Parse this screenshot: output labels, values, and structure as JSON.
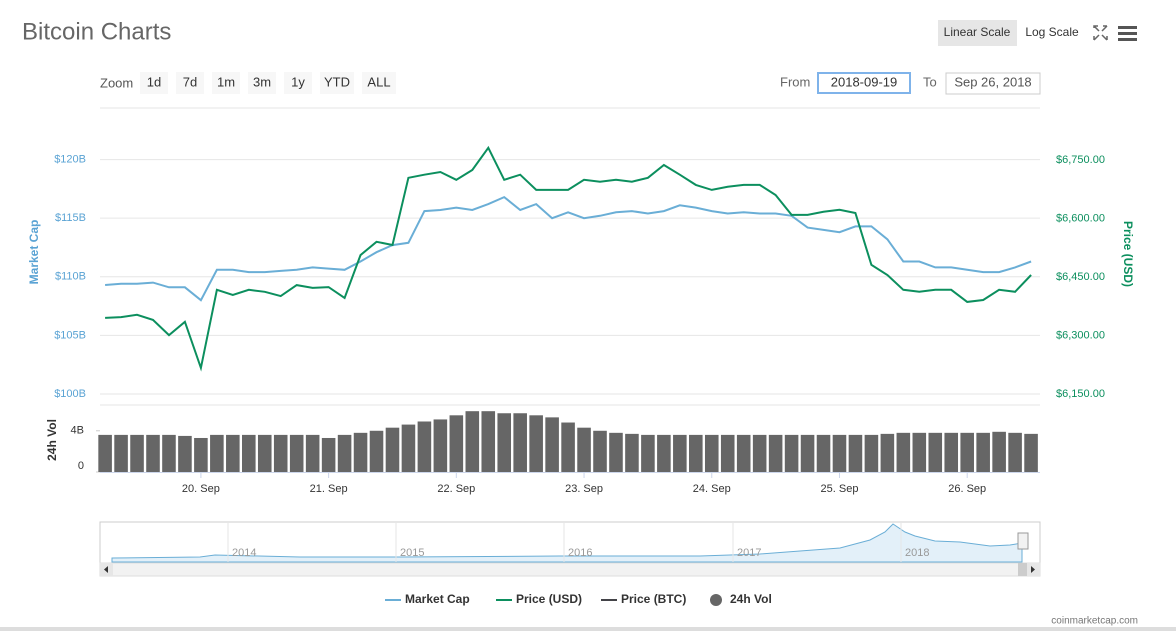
{
  "ui": {
    "title": "Bitcoin Charts",
    "linear_scale": "Linear Scale",
    "log_scale": "Log Scale",
    "zoom": "Zoom",
    "zoom_buttons": [
      "1d",
      "7d",
      "1m",
      "3m",
      "1y",
      "YTD",
      "ALL"
    ],
    "from_label": "From",
    "from_value": "2018-09-19",
    "to_label": "To",
    "to_value": "Sep 26, 2018",
    "credit": "coinmarketcap.com"
  },
  "navigator": {
    "labels": [
      "2014",
      "2015",
      "2016",
      "2017",
      "2018"
    ]
  },
  "chart_data": {
    "type": "line",
    "y_label": "Market Cap",
    "y2_label": "Price (USD)",
    "vol_label": "24h Vol",
    "x": [
      19.25,
      19.375,
      19.5,
      19.625,
      19.75,
      19.875,
      20,
      20.125,
      20.25,
      20.375,
      20.5,
      20.625,
      20.75,
      20.875,
      21,
      21.125,
      21.25,
      21.375,
      21.5,
      21.625,
      21.75,
      21.875,
      22,
      22.125,
      22.25,
      22.375,
      22.5,
      22.625,
      22.75,
      22.875,
      23,
      23.125,
      23.25,
      23.375,
      23.5,
      23.625,
      23.75,
      23.875,
      24,
      24.125,
      24.25,
      24.375,
      24.5,
      24.625,
      24.75,
      24.875,
      25,
      25.125,
      25.25,
      25.375,
      25.5,
      25.625,
      25.75,
      25.875,
      26,
      26.125,
      26.25,
      26.375,
      26.5
    ],
    "xlim": [
      19.21,
      26.57
    ],
    "xticks": [
      {
        "value": 20,
        "label": "20. Sep"
      },
      {
        "value": 21,
        "label": "21. Sep"
      },
      {
        "value": 22,
        "label": "22. Sep"
      },
      {
        "value": 23,
        "label": "23. Sep"
      },
      {
        "value": 24,
        "label": "24. Sep"
      },
      {
        "value": 25,
        "label": "25. Sep"
      },
      {
        "value": 26,
        "label": "26. Sep"
      }
    ],
    "ylim": [
      100,
      124.4
    ],
    "yticks": [
      {
        "value": 100,
        "label": "$100B"
      },
      {
        "value": 105,
        "label": "$105B"
      },
      {
        "value": 110,
        "label": "$110B"
      },
      {
        "value": 115,
        "label": "$115B"
      },
      {
        "value": 120,
        "label": "$120B"
      }
    ],
    "y2lim": [
      6150,
      6883
    ],
    "y2ticks": [
      {
        "value": 6150,
        "label": "$6,150.00"
      },
      {
        "value": 6300,
        "label": "$6,300.00"
      },
      {
        "value": 6450,
        "label": "$6,450.00"
      },
      {
        "value": 6600,
        "label": "$6,600.00"
      },
      {
        "value": 6750,
        "label": "$6,750.00"
      }
    ],
    "vol_lim": [
      0,
      6.5
    ],
    "vol_ticks": [
      0,
      {
        "value": 4,
        "label": "4B"
      }
    ],
    "grid": true,
    "series": [
      {
        "name": "Market Cap",
        "color": "#6aaed6",
        "values": [
          109.3,
          109.4,
          109.4,
          109.5,
          109.1,
          109.1,
          108.0,
          110.6,
          110.6,
          110.4,
          110.4,
          110.5,
          110.6,
          110.8,
          110.7,
          110.6,
          111.3,
          112.1,
          112.7,
          112.9,
          115.6,
          115.7,
          115.9,
          115.7,
          116.2,
          116.8,
          115.7,
          116.2,
          115.0,
          115.5,
          115.0,
          115.2,
          115.5,
          115.6,
          115.4,
          115.6,
          116.1,
          115.9,
          115.6,
          115.4,
          115.5,
          115.4,
          115.4,
          115.2,
          114.2,
          114.0,
          113.8,
          114.3,
          114.3,
          113.2,
          111.3,
          111.3,
          110.8,
          110.8,
          110.6,
          110.4,
          110.4,
          110.8,
          111.3
        ]
      },
      {
        "name": "Price (USD)",
        "color": "#0c8f5e",
        "axis": "y2",
        "values": [
          6345,
          6347,
          6353,
          6340,
          6301,
          6335,
          6217,
          6417,
          6404,
          6417,
          6412,
          6401,
          6429,
          6422,
          6424,
          6396,
          6506,
          6540,
          6532,
          6704,
          6712,
          6719,
          6699,
          6724,
          6781,
          6699,
          6712,
          6673,
          6673,
          6673,
          6699,
          6694,
          6699,
          6694,
          6704,
          6737,
          6712,
          6686,
          6673,
          6681,
          6686,
          6686,
          6660,
          6609,
          6609,
          6617,
          6622,
          6614,
          6481,
          6455,
          6417,
          6412,
          6417,
          6417,
          6386,
          6391,
          6417,
          6412,
          6455
        ]
      },
      {
        "name": "24h Vol",
        "color": "#666666",
        "axis": "vol",
        "type": "bar",
        "values": [
          3.6,
          3.6,
          3.6,
          3.6,
          3.6,
          3.5,
          3.3,
          3.6,
          3.6,
          3.6,
          3.6,
          3.6,
          3.6,
          3.6,
          3.3,
          3.6,
          3.8,
          4.0,
          4.3,
          4.6,
          4.9,
          5.1,
          5.5,
          5.9,
          5.9,
          5.7,
          5.7,
          5.5,
          5.3,
          4.8,
          4.3,
          4.0,
          3.8,
          3.7,
          3.6,
          3.6,
          3.6,
          3.6,
          3.6,
          3.6,
          3.6,
          3.6,
          3.6,
          3.6,
          3.6,
          3.6,
          3.6,
          3.6,
          3.6,
          3.7,
          3.8,
          3.8,
          3.8,
          3.8,
          3.8,
          3.8,
          3.9,
          3.8,
          3.7
        ]
      }
    ],
    "hidden_series": {
      "name": "Price (BTC)",
      "color": "#434348"
    }
  }
}
